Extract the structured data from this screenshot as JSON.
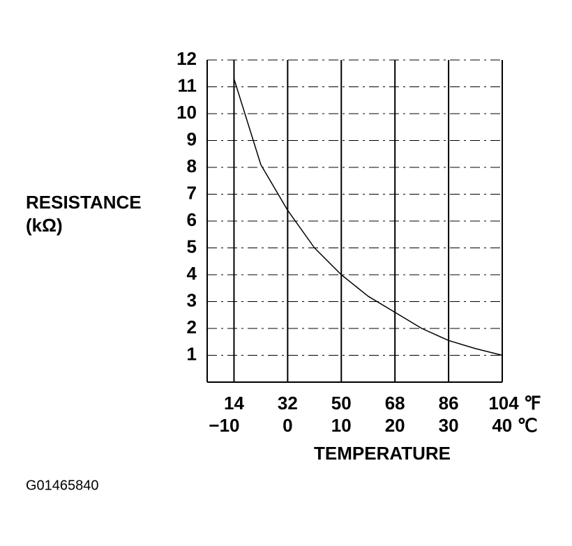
{
  "chart_data": {
    "type": "line",
    "ylabel": "RESISTANCE",
    "ylabel_unit": "(kΩ)",
    "xlabel": "TEMPERATURE",
    "x": [
      -10,
      -5,
      0,
      5,
      10,
      15,
      20,
      25,
      30,
      35,
      40
    ],
    "values": [
      11.3,
      8.1,
      6.4,
      5.0,
      4.0,
      3.2,
      2.6,
      2.0,
      1.55,
      1.25,
      1.0
    ],
    "color": "#000000",
    "xlim": [
      -15,
      40
    ],
    "ylim": [
      0,
      12
    ],
    "xticks": [
      {
        "value": -10,
        "label": "−10"
      },
      0,
      10,
      20,
      30,
      {
        "value": 40,
        "label": "40 ℃"
      }
    ],
    "xticks_fahrenheit": [
      "14",
      "32",
      "50",
      "68",
      "86",
      "104 ℉"
    ],
    "yticks": [
      1,
      2,
      3,
      4,
      5,
      6,
      7,
      8,
      9,
      10,
      11,
      12
    ],
    "grid": true
  },
  "caption": "G01465840"
}
